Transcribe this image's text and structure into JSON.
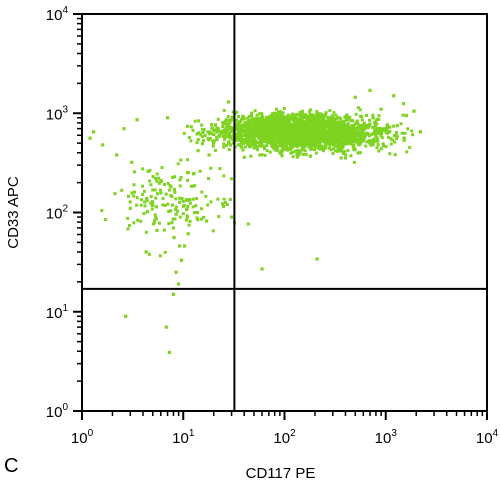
{
  "panel_label": "C",
  "colors": {
    "points": "#7ed321",
    "axes": "#000000",
    "background": "#ffffff"
  },
  "chart_data": {
    "type": "scatter",
    "title": "",
    "xlabel": "CD117 PE",
    "ylabel": "CD33 APC",
    "x_scale": "log",
    "y_scale": "log",
    "xlim": [
      1,
      10000
    ],
    "ylim": [
      1,
      10000
    ],
    "x_ticks": [
      {
        "base": "10",
        "exp": "0",
        "value": 1
      },
      {
        "base": "10",
        "exp": "1",
        "value": 10
      },
      {
        "base": "10",
        "exp": "2",
        "value": 100
      },
      {
        "base": "10",
        "exp": "3",
        "value": 1000
      },
      {
        "base": "10",
        "exp": "4",
        "value": 10000
      }
    ],
    "y_ticks": [
      {
        "base": "10",
        "exp": "0",
        "value": 1
      },
      {
        "base": "10",
        "exp": "1",
        "value": 10
      },
      {
        "base": "10",
        "exp": "2",
        "value": 100
      },
      {
        "base": "10",
        "exp": "3",
        "value": 1000
      },
      {
        "base": "10",
        "exp": "4",
        "value": 10000
      }
    ],
    "grid": false,
    "quadrant_gates": {
      "x": 32,
      "y": 17
    },
    "points": [
      [
        2.7,
        9.0
      ],
      [
        6.8,
        7.0
      ],
      [
        7.3,
        3.9
      ],
      [
        8.0,
        15.0
      ],
      [
        9.0,
        19.0
      ],
      [
        8.5,
        25.0
      ],
      [
        9.6,
        33.0
      ],
      [
        4.3,
        40.0
      ],
      [
        9.2,
        46.0
      ],
      [
        8.1,
        56.0
      ],
      [
        10.3,
        46.0
      ],
      [
        11.2,
        61.0
      ],
      [
        5.5,
        66.0
      ],
      [
        17.0,
        82.0
      ],
      [
        60.0,
        27.0
      ],
      [
        210.0,
        34.0
      ],
      [
        11.0,
        90.0
      ],
      [
        13.0,
        100.0
      ],
      [
        8.5,
        96.0
      ],
      [
        7.5,
        104.0
      ],
      [
        25.0,
        115.0
      ],
      [
        30.0,
        90.0
      ],
      [
        3.0,
        110.0
      ],
      [
        5.0,
        120.0
      ],
      [
        1.3,
        650.0
      ],
      [
        1.2,
        560.0
      ],
      [
        1.6,
        480.0
      ],
      [
        2.2,
        380.0
      ],
      [
        3.1,
        320.0
      ],
      [
        2.6,
        700.0
      ],
      [
        4.5,
        260.0
      ],
      [
        6.0,
        210.0
      ],
      [
        1300.0,
        750.0
      ],
      [
        1600.0,
        950.0
      ],
      [
        2200.0,
        650.0
      ],
      [
        1900.0,
        1050.0
      ],
      [
        1500.0,
        1250.0
      ],
      [
        1200.0,
        1500.0
      ],
      [
        28.0,
        1300.0
      ],
      [
        7.0,
        900.0
      ],
      [
        3.5,
        860.0
      ],
      [
        700.0,
        1700.0
      ],
      [
        500.0,
        1450.0
      ],
      [
        900.0,
        1100.0
      ],
      [
        14.0,
        420.0
      ],
      [
        20.0,
        610.0
      ],
      [
        35.0,
        480.0
      ],
      [
        50.0,
        700.0
      ],
      [
        75.0,
        520.0
      ],
      [
        110.0,
        650.0
      ],
      [
        150.0,
        440.0
      ],
      [
        200.0,
        720.0
      ],
      [
        260.0,
        560.0
      ],
      [
        340.0,
        640.0
      ],
      [
        450.0,
        510.0
      ],
      [
        600.0,
        760.0
      ],
      [
        800.0,
        580.0
      ],
      [
        12.0,
        730.0
      ],
      [
        18.0,
        380.0
      ],
      [
        26.0,
        820.0
      ],
      [
        40.0,
        360.0
      ],
      [
        60.0,
        860.0
      ],
      [
        90.0,
        400.0
      ],
      [
        130.0,
        900.0
      ],
      [
        180.0,
        370.0
      ],
      [
        240.0,
        880.0
      ],
      [
        320.0,
        420.0
      ],
      [
        420.0,
        860.0
      ],
      [
        560.0,
        400.0
      ],
      [
        750.0,
        900.0
      ],
      [
        950.0,
        470.0
      ]
    ]
  }
}
